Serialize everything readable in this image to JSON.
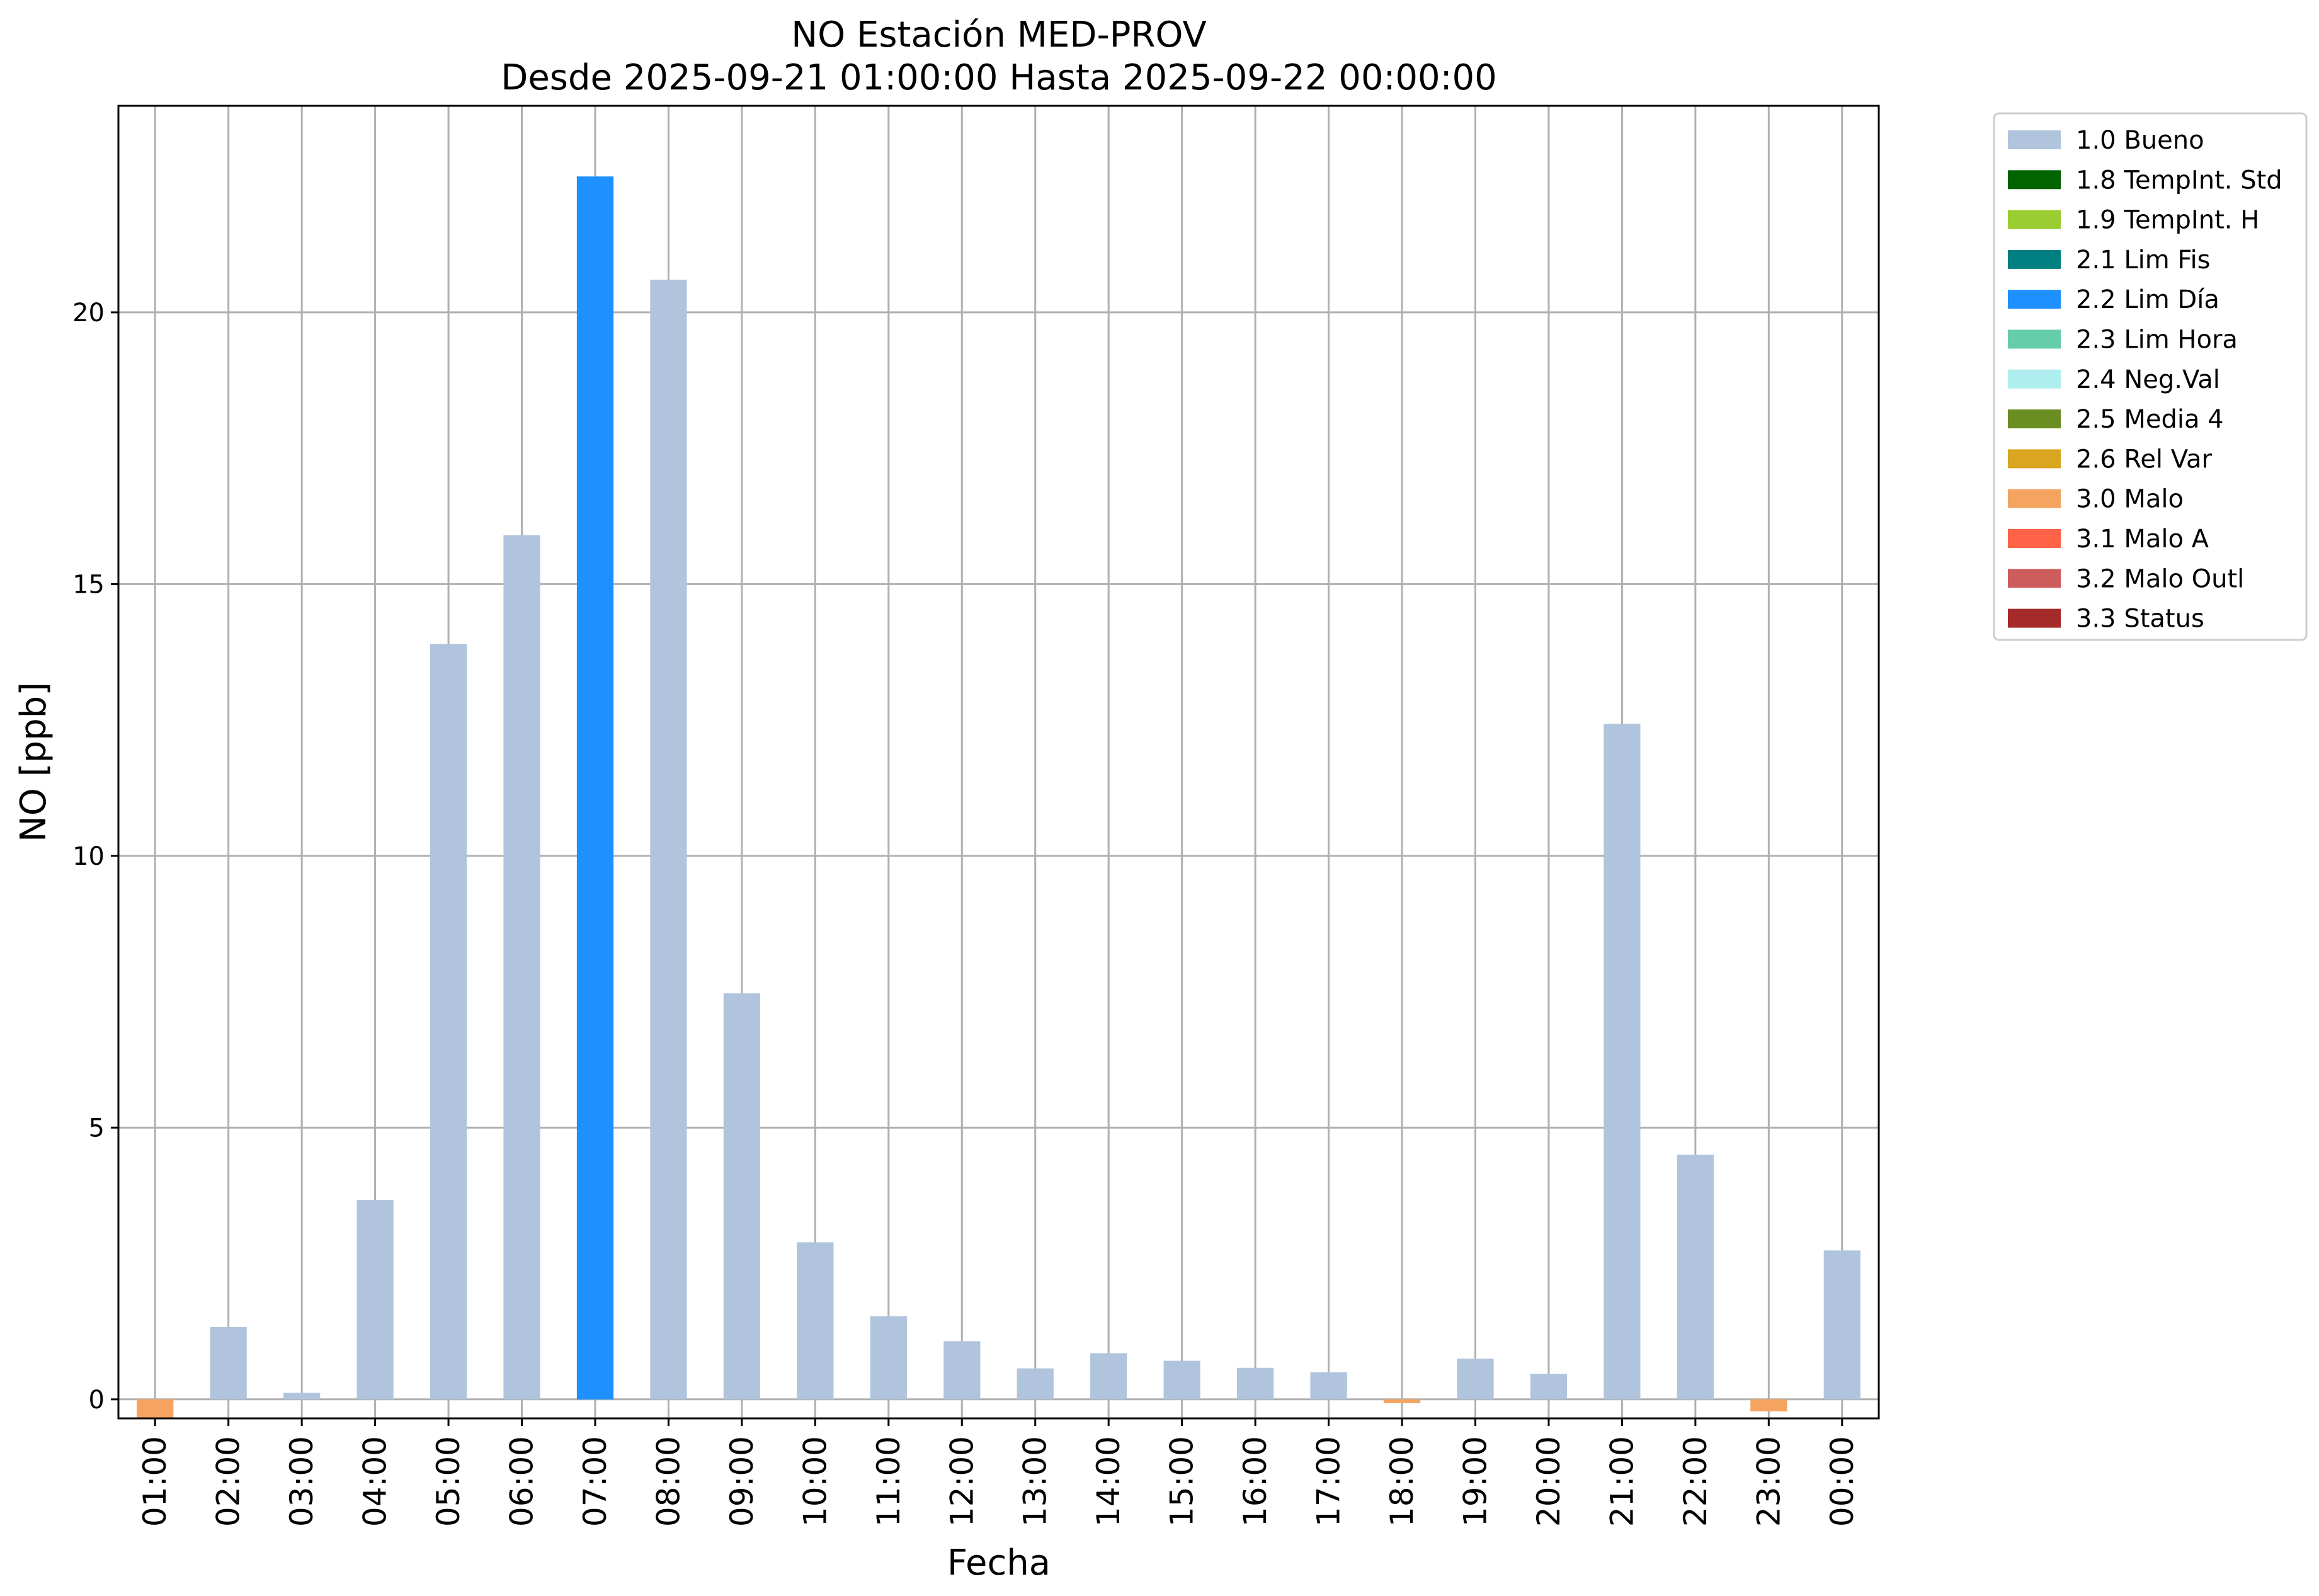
{
  "chart_data": {
    "type": "bar",
    "title": "NO Estación MED-PROV",
    "subtitle": "Desde 2025-09-21 01:00:00 Hasta 2025-09-22 00:00:00",
    "xlabel": "Fecha",
    "ylabel": "NO [ppb]",
    "ylim": [
      -0.35,
      23.8
    ],
    "yticks": [
      0,
      5,
      10,
      15,
      20
    ],
    "grid": true,
    "legend_position": "outside-top-right",
    "categories": [
      "01:00",
      "02:00",
      "03:00",
      "04:00",
      "05:00",
      "06:00",
      "07:00",
      "08:00",
      "09:00",
      "10:00",
      "11:00",
      "12:00",
      "13:00",
      "14:00",
      "15:00",
      "16:00",
      "17:00",
      "18:00",
      "19:00",
      "20:00",
      "21:00",
      "22:00",
      "23:00",
      "00:00"
    ],
    "values": [
      -0.35,
      1.33,
      0.12,
      3.67,
      13.9,
      15.9,
      22.5,
      20.6,
      7.47,
      2.89,
      1.53,
      1.07,
      0.57,
      0.85,
      0.71,
      0.58,
      0.5,
      -0.07,
      0.75,
      0.47,
      12.43,
      4.5,
      -0.22,
      2.74
    ],
    "flags": [
      "3.0 Malo",
      "1.0 Bueno",
      "1.0 Bueno",
      "1.0 Bueno",
      "1.0 Bueno",
      "1.0 Bueno",
      "2.2 Lim Día",
      "1.0 Bueno",
      "1.0 Bueno",
      "1.0 Bueno",
      "1.0 Bueno",
      "1.0 Bueno",
      "1.0 Bueno",
      "1.0 Bueno",
      "1.0 Bueno",
      "1.0 Bueno",
      "1.0 Bueno",
      "3.0 Malo",
      "1.0 Bueno",
      "1.0 Bueno",
      "1.0 Bueno",
      "1.0 Bueno",
      "3.0 Malo",
      "1.0 Bueno"
    ],
    "legend": [
      {
        "label": "1.0 Bueno",
        "color": "#b0c4de"
      },
      {
        "label": "1.8 TempInt. Std",
        "color": "#006400"
      },
      {
        "label": "1.9 TempInt. H",
        "color": "#9acd32"
      },
      {
        "label": "2.1 Lim Fis",
        "color": "#008080"
      },
      {
        "label": "2.2 Lim Día",
        "color": "#1e90ff"
      },
      {
        "label": "2.3 Lim Hora",
        "color": "#66cdaa"
      },
      {
        "label": "2.4 Neg.Val",
        "color": "#afeeee"
      },
      {
        "label": "2.5 Media 4",
        "color": "#6b8e23"
      },
      {
        "label": "2.6 Rel Var",
        "color": "#daa520"
      },
      {
        "label": "3.0 Malo",
        "color": "#f4a460"
      },
      {
        "label": "3.1 Malo A",
        "color": "#ff6347"
      },
      {
        "label": "3.2 Malo Outl",
        "color": "#cd5c5c"
      },
      {
        "label": "3.3 Status",
        "color": "#a52a2a"
      }
    ]
  }
}
